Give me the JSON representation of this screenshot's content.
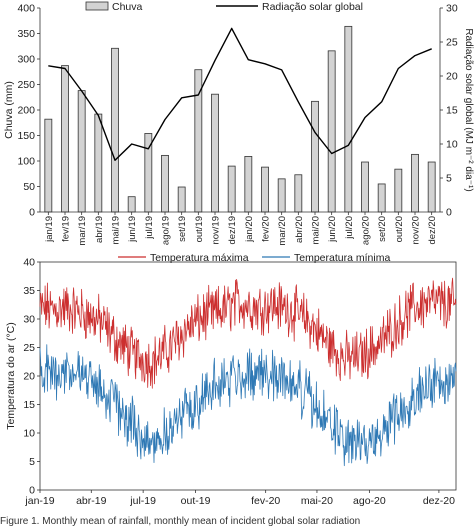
{
  "caption": "Figure 1. Monthly mean of rainfall, monthly mean of incident global solar radiation",
  "chart_data": [
    {
      "type": "bar",
      "title": "",
      "categories": [
        "jan/19",
        "fev/19",
        "mar/19",
        "abr/19",
        "mai/19",
        "jun/19",
        "jul/19",
        "ago/19",
        "set/19",
        "out/19",
        "nov/19",
        "dez/19",
        "jan/20",
        "fev/20",
        "mar/20",
        "abr/20",
        "mai/20",
        "jun/20",
        "jul/20",
        "ago/20",
        "set/20",
        "out/20",
        "nov/20",
        "dez/20"
      ],
      "ylabel": "Chuva (mm)",
      "y2label": "Radiação solar global (MJ m⁻² dia⁻¹)",
      "ylim": [
        0,
        400
      ],
      "y2lim": [
        0,
        30
      ],
      "yticks": [
        0,
        50,
        100,
        150,
        200,
        250,
        300,
        350,
        400
      ],
      "y2ticks": [
        0,
        5,
        10,
        15,
        20,
        25,
        30
      ],
      "legend_position": "top",
      "grid": false,
      "colors": {
        "bar_fill": "#d3d3d3",
        "bar_stroke": "#333333",
        "line": "#000000"
      },
      "series": [
        {
          "name": "Chuva",
          "kind": "bar",
          "axis": "left",
          "values": [
            182,
            287,
            238,
            192,
            321,
            30,
            154,
            111,
            49,
            279,
            231,
            90,
            109,
            88,
            65,
            73,
            217,
            316,
            364,
            98,
            55,
            84,
            113,
            98
          ]
        },
        {
          "name": "Radiação solar global",
          "kind": "line",
          "axis": "right",
          "values": [
            21.5,
            21.1,
            17.8,
            14.2,
            7.6,
            10.0,
            9.3,
            13.6,
            16.8,
            17.2,
            22.3,
            27.0,
            22.4,
            21.8,
            20.9,
            16.2,
            11.7,
            8.6,
            9.8,
            13.9,
            16.2,
            21.1,
            23.0,
            24.0
          ]
        }
      ]
    },
    {
      "type": "line",
      "title": "",
      "ylabel": "Temperatura do ar (°C)",
      "xlabel": "",
      "ylim": [
        0,
        40
      ],
      "yticks": [
        0,
        5,
        10,
        15,
        20,
        25,
        30,
        35,
        40
      ],
      "x_tick_labels": [
        "jan-19",
        "abr-19",
        "jul-19",
        "out-19",
        "fev-20",
        "mai-20",
        "ago-20",
        "dez-20"
      ],
      "x_tick_day_index": [
        0,
        90,
        181,
        273,
        396,
        486,
        578,
        700
      ],
      "day_count": 731,
      "legend_position": "top",
      "grid": false,
      "series": [
        {
          "name": "Temperatura máxima",
          "color": "#cc2f2f",
          "monthly_means": [
            31.5,
            32.0,
            31.0,
            29.5,
            26.0,
            23.5,
            22.5,
            25.0,
            28.5,
            30.5,
            31.5,
            33.0,
            32.0,
            32.5,
            31.5,
            29.5,
            26.0,
            23.0,
            23.5,
            25.5,
            29.0,
            32.0,
            33.0,
            32.5
          ],
          "noise_amplitude": 3.6,
          "min": 13.5,
          "max": 40.0
        },
        {
          "name": "Temperatura mínima",
          "color": "#2f79b5",
          "monthly_means": [
            20.5,
            21.0,
            20.0,
            18.0,
            14.5,
            10.5,
            8.5,
            10.5,
            14.0,
            17.0,
            19.0,
            20.0,
            20.5,
            20.5,
            19.0,
            16.0,
            12.0,
            9.0,
            7.5,
            9.5,
            13.0,
            17.0,
            18.5,
            19.5
          ],
          "noise_amplitude": 3.6,
          "min": 0.5,
          "max": 25.5
        }
      ]
    }
  ]
}
